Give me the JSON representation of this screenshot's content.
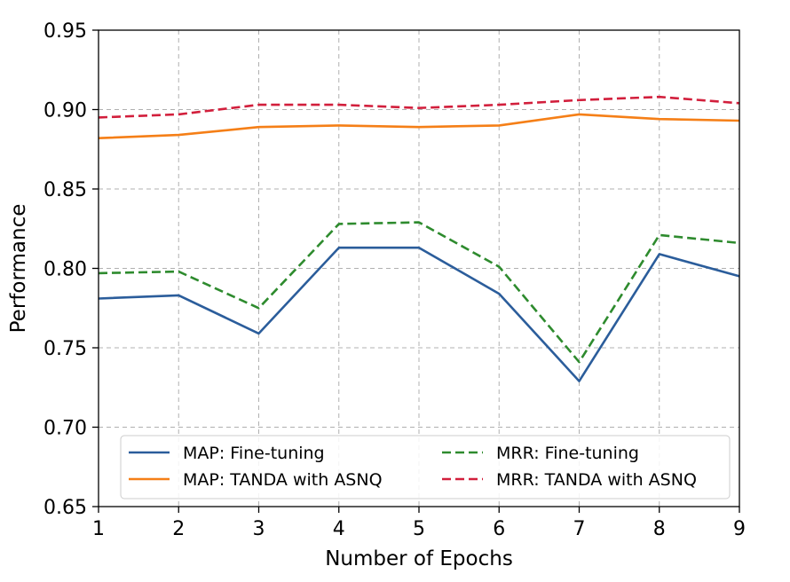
{
  "chart_data": {
    "type": "line",
    "title": "",
    "xlabel": "Number of Epochs",
    "ylabel": "Performance",
    "x": [
      1,
      2,
      3,
      4,
      5,
      6,
      7,
      8,
      9
    ],
    "xticks": [
      "1",
      "2",
      "3",
      "4",
      "5",
      "6",
      "7",
      "8",
      "9"
    ],
    "yticks": [
      "0.65",
      "0.70",
      "0.75",
      "0.80",
      "0.85",
      "0.90",
      "0.95"
    ],
    "xlim": [
      1,
      9
    ],
    "ylim": [
      0.65,
      0.95
    ],
    "grid": true,
    "legend_position": "bottom",
    "series": [
      {
        "name": "MAP: Fine-tuning",
        "color": "#2b5d9b",
        "style": "solid",
        "values": [
          0.781,
          0.783,
          0.759,
          0.813,
          0.813,
          0.784,
          0.729,
          0.809,
          0.795
        ]
      },
      {
        "name": "MRR: Fine-tuning",
        "color": "#2e8b2e",
        "style": "dashed",
        "values": [
          0.797,
          0.798,
          0.775,
          0.828,
          0.829,
          0.801,
          0.741,
          0.821,
          0.816
        ]
      },
      {
        "name": "MAP: TANDA with ASNQ",
        "color": "#f57f17",
        "style": "solid",
        "values": [
          0.882,
          0.884,
          0.889,
          0.89,
          0.889,
          0.89,
          0.897,
          0.894,
          0.893
        ]
      },
      {
        "name": "MRR: TANDA with ASNQ",
        "color": "#d21f3c",
        "style": "dashed",
        "values": [
          0.895,
          0.897,
          0.903,
          0.903,
          0.901,
          0.903,
          0.906,
          0.908,
          0.904
        ]
      }
    ]
  }
}
